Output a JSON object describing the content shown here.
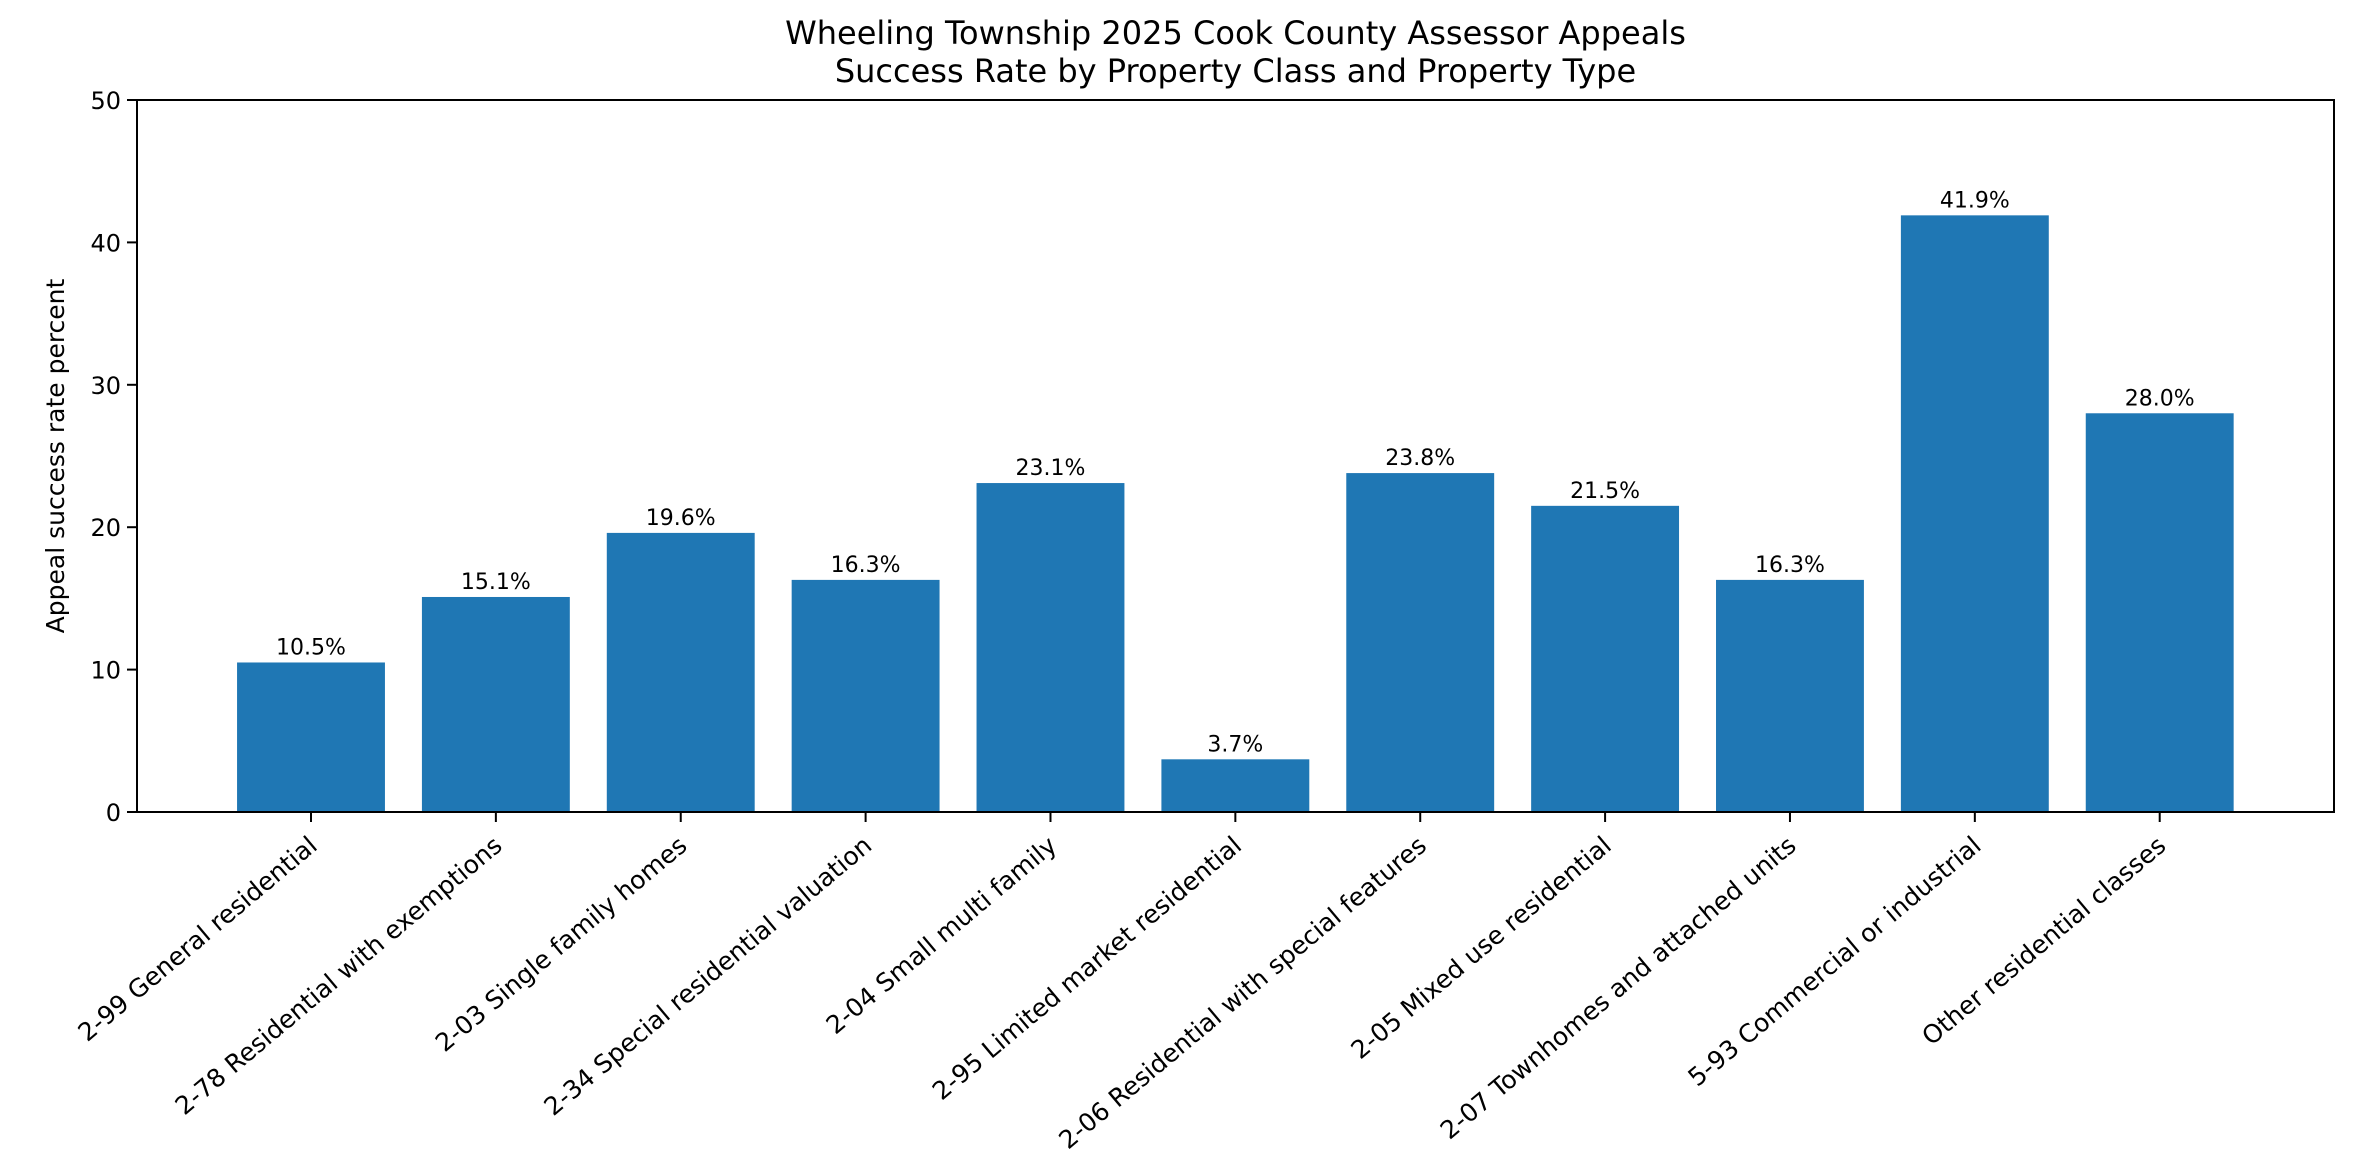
{
  "chart_data": {
    "type": "bar",
    "title": [
      "Wheeling Township 2025 Cook County Assessor Appeals",
      "Success Rate by Property Class and Property Type"
    ],
    "xlabel": "",
    "ylabel": "Appeal success rate percent",
    "ylim": [
      0,
      50
    ],
    "yticks": [
      0,
      10,
      20,
      30,
      40,
      50
    ],
    "ytick_labels": [
      "0",
      "10",
      "20",
      "30",
      "40",
      "50"
    ],
    "grid": false,
    "bar_color": "#1f77b4",
    "categories": [
      "2-99 General residential",
      "2-78 Residential with exemptions",
      "2-03 Single family homes",
      "2-34 Special residential valuation",
      "2-04 Small multi family",
      "2-95 Limited market residential",
      "2-06 Residential with special features",
      "2-05 Mixed use residential",
      "2-07 Townhomes and attached units",
      "5-93 Commercial or industrial",
      "Other residential classes"
    ],
    "values": [
      10.5,
      15.1,
      19.6,
      16.3,
      23.1,
      3.7,
      23.8,
      21.5,
      16.3,
      41.9,
      28.0
    ],
    "data_labels": [
      "10.5%",
      "15.1%",
      "19.6%",
      "16.3%",
      "23.1%",
      "3.7%",
      "23.8%",
      "21.5%",
      "16.3%",
      "41.9%",
      "28.0%"
    ]
  }
}
